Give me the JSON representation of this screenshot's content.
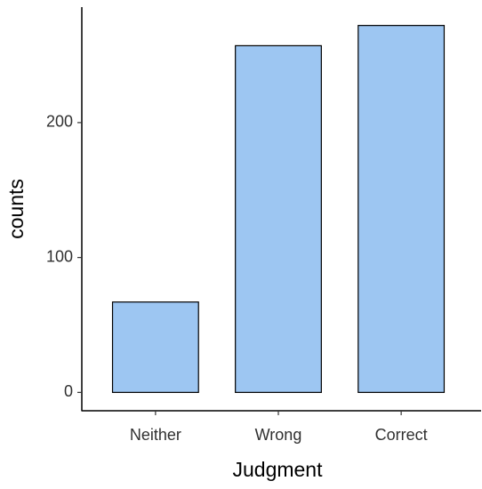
{
  "chart_data": {
    "type": "bar",
    "x_label": "Judgment",
    "y_label": "counts",
    "categories": [
      "Neither",
      "Wrong",
      "Correct"
    ],
    "values": [
      67,
      257,
      272
    ],
    "color": "#9dc6f2",
    "edge_color": "#000000",
    "ylim": [
      -13.6,
      285.6
    ],
    "yticks": [
      0,
      100,
      200
    ],
    "grid": false
  }
}
